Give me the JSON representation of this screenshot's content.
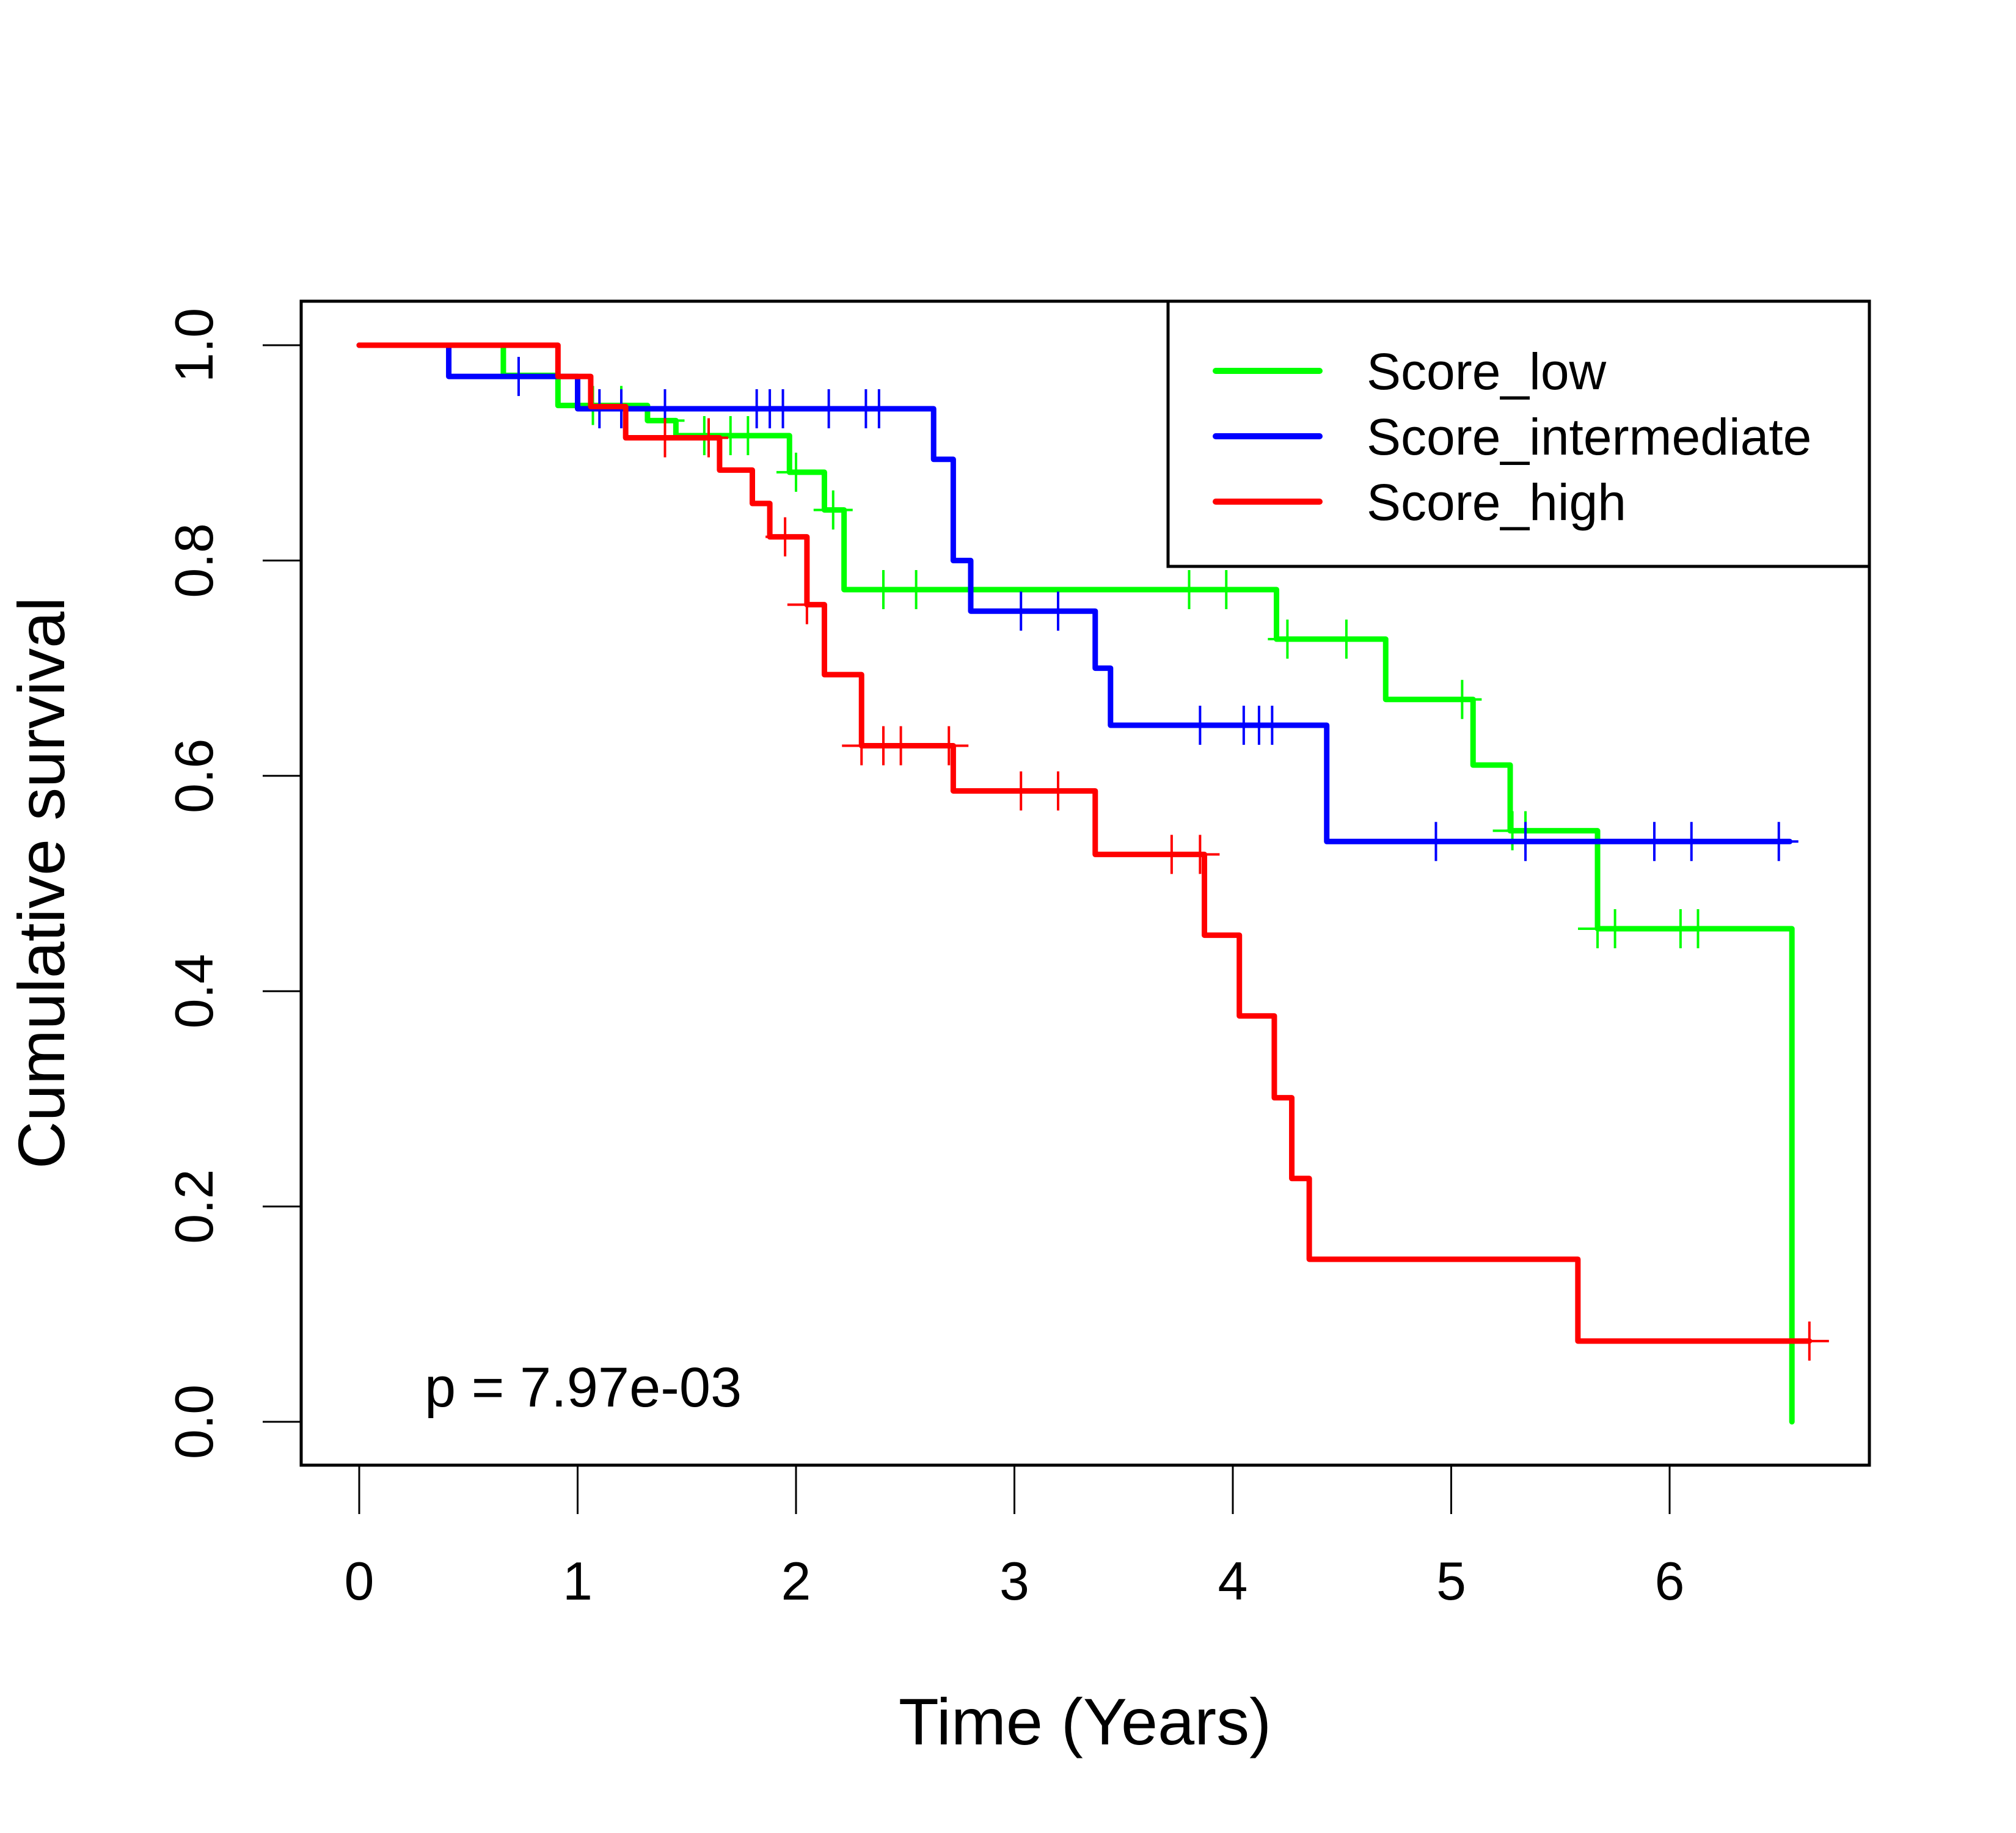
{
  "chart_data": {
    "type": "line",
    "subtype": "kaplan-meier step",
    "title": "",
    "xlabel": "Time (Years)",
    "ylabel": "Cumulative survival",
    "xlim": [
      0,
      6.7
    ],
    "ylim": [
      0,
      1.0
    ],
    "xticks": [
      0,
      1,
      2,
      3,
      4,
      5,
      6
    ],
    "xtick_labels": [
      "0",
      "1",
      "2",
      "3",
      "4",
      "5",
      "6"
    ],
    "yticks": [
      0.0,
      0.2,
      0.4,
      0.6,
      0.8,
      1.0
    ],
    "ytick_labels": [
      "0.0",
      "0.2",
      "0.4",
      "0.6",
      "0.8",
      "1.0"
    ],
    "grid": false,
    "legend_position": "top-right",
    "annotation": "p = 7.97e-03",
    "series": [
      {
        "name": "Score_low",
        "color": "#00ff00",
        "steps": [
          [
            0,
            1.0
          ],
          [
            0.66,
            0.972
          ],
          [
            0.91,
            0.944
          ],
          [
            1.32,
            0.93
          ],
          [
            1.45,
            0.916
          ],
          [
            1.97,
            0.882
          ],
          [
            2.13,
            0.847
          ],
          [
            2.22,
            0.773
          ],
          [
            4.2,
            0.727
          ],
          [
            4.7,
            0.671
          ],
          [
            5.1,
            0.61
          ],
          [
            5.27,
            0.549
          ],
          [
            5.67,
            0.458
          ],
          [
            6.56,
            0.0
          ]
        ],
        "end": 6.56,
        "censor_times": [
          1.07,
          1.2,
          1.4,
          1.58,
          1.7,
          1.78,
          2.0,
          2.17,
          2.4,
          2.55,
          3.8,
          3.97,
          4.25,
          4.52,
          5.05,
          5.28,
          5.34,
          5.67,
          5.75,
          6.05,
          6.13
        ]
      },
      {
        "name": "Score_intermediate",
        "color": "#0000ff",
        "steps": [
          [
            0,
            1.0
          ],
          [
            0.41,
            0.971
          ],
          [
            1.0,
            0.941
          ],
          [
            2.63,
            0.894
          ],
          [
            2.72,
            0.8
          ],
          [
            2.8,
            0.753
          ],
          [
            3.37,
            0.7
          ],
          [
            3.44,
            0.647
          ],
          [
            4.43,
            0.539
          ]
        ],
        "end": 6.55,
        "censor_times": [
          0.73,
          1.1,
          1.2,
          1.4,
          1.82,
          1.88,
          1.94,
          2.15,
          2.32,
          2.38,
          3.03,
          3.2,
          3.85,
          4.05,
          4.12,
          4.18,
          4.93,
          5.34,
          5.93,
          6.1,
          6.5
        ]
      },
      {
        "name": "Score_high",
        "color": "#ff0000",
        "steps": [
          [
            0,
            1.0
          ],
          [
            0.91,
            0.971
          ],
          [
            1.06,
            0.943
          ],
          [
            1.22,
            0.914
          ],
          [
            1.65,
            0.884
          ],
          [
            1.8,
            0.853
          ],
          [
            1.88,
            0.822
          ],
          [
            2.05,
            0.759
          ],
          [
            2.13,
            0.694
          ],
          [
            2.3,
            0.628
          ],
          [
            2.72,
            0.586
          ],
          [
            3.37,
            0.527
          ],
          [
            3.87,
            0.452
          ],
          [
            4.03,
            0.377
          ],
          [
            4.19,
            0.301
          ],
          [
            4.27,
            0.226
          ],
          [
            4.35,
            0.151
          ],
          [
            5.58,
            0.075
          ]
        ],
        "end": 6.64,
        "censor_times": [
          1.4,
          1.6,
          1.95,
          2.05,
          2.3,
          2.4,
          2.48,
          2.7,
          3.03,
          3.2,
          3.72,
          3.85,
          6.64
        ]
      }
    ]
  }
}
